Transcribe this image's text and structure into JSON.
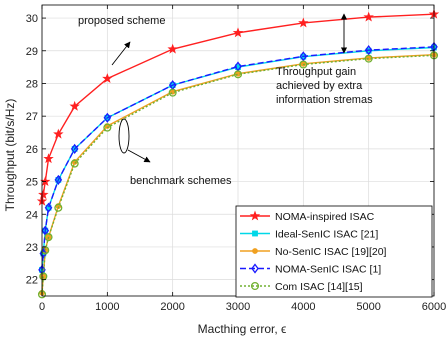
{
  "chart_data": {
    "type": "line",
    "title": "",
    "xlabel": "Macthing error, ϵ",
    "ylabel": "Throughput (bit/s/Hz)",
    "xlim": [
      0,
      6000
    ],
    "ylim": [
      21.5,
      30.4
    ],
    "xticks": [
      0,
      1000,
      2000,
      3000,
      4000,
      5000,
      6000
    ],
    "yticks": [
      22,
      23,
      24,
      25,
      26,
      27,
      28,
      29,
      30
    ],
    "grid": true,
    "legend_position": "bottom-right",
    "series": [
      {
        "name": "NOMA-inspired ISAC",
        "color": "#ff2020",
        "line_style": "solid",
        "marker": "star",
        "x": [
          0,
          20,
          50,
          100,
          250,
          500,
          1000,
          2000,
          3000,
          4000,
          5000,
          6000
        ],
        "y": [
          24.4,
          24.6,
          25.0,
          25.7,
          26.45,
          27.3,
          28.15,
          29.05,
          29.55,
          29.85,
          30.03,
          30.12
        ]
      },
      {
        "name": "Ideal-SenIC ISAC [21]",
        "color": "#00d8e8",
        "line_style": "solid",
        "marker": "square",
        "x": [
          0,
          20,
          50,
          100,
          250,
          500,
          1000,
          2000,
          3000,
          4000,
          5000,
          6000
        ],
        "y": [
          22.3,
          22.8,
          23.5,
          24.2,
          25.05,
          26.0,
          26.95,
          27.95,
          28.5,
          28.82,
          29.0,
          29.1
        ]
      },
      {
        "name": "No-SenIC ISAC [19][20]",
        "color": "#f0a020",
        "line_style": "solid",
        "marker": "circle",
        "x": [
          0,
          20,
          50,
          100,
          250,
          500,
          1000,
          2000,
          3000,
          4000,
          5000,
          6000
        ],
        "y": [
          21.6,
          22.1,
          22.9,
          23.3,
          24.25,
          25.6,
          26.7,
          27.75,
          28.3,
          28.6,
          28.78,
          28.88
        ]
      },
      {
        "name": "NOMA-SenIC ISAC [1]",
        "color": "#1a1aff",
        "line_style": "dashed",
        "marker": "diamond",
        "x": [
          0,
          20,
          50,
          100,
          250,
          500,
          1000,
          2000,
          3000,
          4000,
          5000,
          6000
        ],
        "y": [
          22.3,
          22.8,
          23.5,
          24.2,
          25.05,
          26.0,
          26.95,
          27.95,
          28.52,
          28.83,
          29.02,
          29.12
        ]
      },
      {
        "name": "Com ISAC [14][15]",
        "color": "#70b030",
        "line_style": "dotted",
        "marker": "circle-open",
        "x": [
          0,
          20,
          50,
          100,
          250,
          500,
          1000,
          2000,
          3000,
          4000,
          5000,
          6000
        ],
        "y": [
          21.55,
          22.1,
          22.9,
          23.3,
          24.2,
          25.55,
          26.65,
          27.72,
          28.28,
          28.58,
          28.76,
          28.86
        ]
      }
    ],
    "annotations": [
      {
        "id": "proposed",
        "text": "proposed scheme"
      },
      {
        "id": "benchmark",
        "text": "benchmark schemes"
      },
      {
        "id": "gain_line1",
        "text": "Throughput gain"
      },
      {
        "id": "gain_line2",
        "text": "achieved by extra"
      },
      {
        "id": "gain_line3",
        "text": "information stremas"
      }
    ]
  }
}
